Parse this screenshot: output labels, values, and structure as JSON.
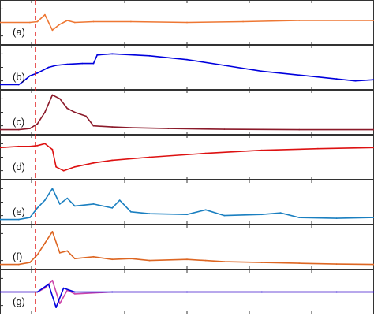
{
  "figure": {
    "onset_line_color": "#e02020"
  },
  "chart_data": [
    {
      "type": "line",
      "label": "(a)",
      "series": [
        {
          "color": "#ee7733",
          "x": [
            0,
            0.08,
            0.1,
            0.12,
            0.14,
            0.16,
            0.18,
            0.2,
            0.25,
            0.35,
            0.5,
            0.65,
            0.8,
            1.0
          ],
          "values": [
            0.5,
            0.5,
            0.52,
            0.7,
            0.3,
            0.45,
            0.55,
            0.5,
            0.52,
            0.52,
            0.5,
            0.52,
            0.55,
            0.55
          ]
        }
      ]
    },
    {
      "type": "line",
      "label": "(b)",
      "series": [
        {
          "color": "#0000dd",
          "x": [
            0,
            0.05,
            0.06,
            0.07,
            0.08,
            0.1,
            0.13,
            0.15,
            0.18,
            0.22,
            0.25,
            0.26,
            0.3,
            0.4,
            0.5,
            0.6,
            0.7,
            0.8,
            0.9,
            0.95,
            1.0
          ],
          "values": [
            0.05,
            0.05,
            0.12,
            0.2,
            0.28,
            0.35,
            0.5,
            0.55,
            0.58,
            0.6,
            0.6,
            0.82,
            0.85,
            0.8,
            0.7,
            0.55,
            0.4,
            0.3,
            0.2,
            0.15,
            0.18
          ]
        }
      ]
    },
    {
      "type": "line",
      "label": "(c)",
      "series": [
        {
          "color": "#8b1a2a",
          "x": [
            0,
            0.05,
            0.08,
            0.1,
            0.12,
            0.14,
            0.16,
            0.18,
            0.2,
            0.23,
            0.25,
            0.3,
            0.35,
            0.45,
            0.6,
            0.8,
            1.0
          ],
          "values": [
            0.05,
            0.05,
            0.08,
            0.2,
            0.5,
            0.95,
            0.85,
            0.6,
            0.5,
            0.4,
            0.15,
            0.12,
            0.1,
            0.08,
            0.06,
            0.05,
            0.05
          ]
        }
      ]
    },
    {
      "type": "line",
      "label": "(d)",
      "series": [
        {
          "color": "#dd1111",
          "x": [
            0,
            0.05,
            0.08,
            0.1,
            0.12,
            0.14,
            0.15,
            0.17,
            0.2,
            0.25,
            0.3,
            0.4,
            0.55,
            0.7,
            0.85,
            1.0
          ],
          "values": [
            0.75,
            0.78,
            0.78,
            0.8,
            0.85,
            0.7,
            0.25,
            0.15,
            0.25,
            0.35,
            0.42,
            0.5,
            0.6,
            0.68,
            0.72,
            0.75
          ]
        }
      ]
    },
    {
      "type": "line",
      "label": "(e)",
      "series": [
        {
          "color": "#1a7fc0",
          "x": [
            0,
            0.05,
            0.08,
            0.1,
            0.12,
            0.14,
            0.16,
            0.18,
            0.2,
            0.25,
            0.3,
            0.32,
            0.35,
            0.4,
            0.5,
            0.55,
            0.6,
            0.7,
            0.75,
            0.8,
            0.9,
            1.0
          ],
          "values": [
            0.05,
            0.05,
            0.1,
            0.35,
            0.55,
            0.85,
            0.45,
            0.6,
            0.4,
            0.45,
            0.35,
            0.55,
            0.25,
            0.2,
            0.18,
            0.3,
            0.15,
            0.18,
            0.22,
            0.1,
            0.08,
            0.1
          ]
        }
      ]
    },
    {
      "type": "line",
      "label": "(f)",
      "series": [
        {
          "color": "#dd6622",
          "x": [
            0,
            0.05,
            0.08,
            0.1,
            0.12,
            0.14,
            0.16,
            0.18,
            0.2,
            0.25,
            0.3,
            0.35,
            0.4,
            0.5,
            0.55,
            0.6,
            0.7,
            0.8,
            0.9,
            1.0
          ],
          "values": [
            0.05,
            0.05,
            0.1,
            0.3,
            0.6,
            0.9,
            0.35,
            0.4,
            0.2,
            0.25,
            0.18,
            0.2,
            0.15,
            0.18,
            0.15,
            0.12,
            0.1,
            0.08,
            0.06,
            0.05
          ]
        }
      ]
    },
    {
      "type": "line",
      "label": "(g)",
      "series": [
        {
          "color": "#cc44aa",
          "x": [
            0,
            0.1,
            0.12,
            0.14,
            0.16,
            0.18,
            0.2,
            0.3,
            0.5,
            0.7,
            0.9,
            1.0
          ],
          "values": [
            0.5,
            0.5,
            0.6,
            0.8,
            0.2,
            0.55,
            0.45,
            0.5,
            0.5,
            0.5,
            0.5,
            0.5
          ]
        },
        {
          "color": "#0000dd",
          "x": [
            0,
            0.1,
            0.13,
            0.15,
            0.17,
            0.2,
            0.3,
            0.5,
            0.7,
            0.9,
            1.0
          ],
          "values": [
            0.5,
            0.5,
            0.7,
            0.1,
            0.6,
            0.5,
            0.5,
            0.5,
            0.5,
            0.5,
            0.5
          ]
        }
      ]
    }
  ]
}
